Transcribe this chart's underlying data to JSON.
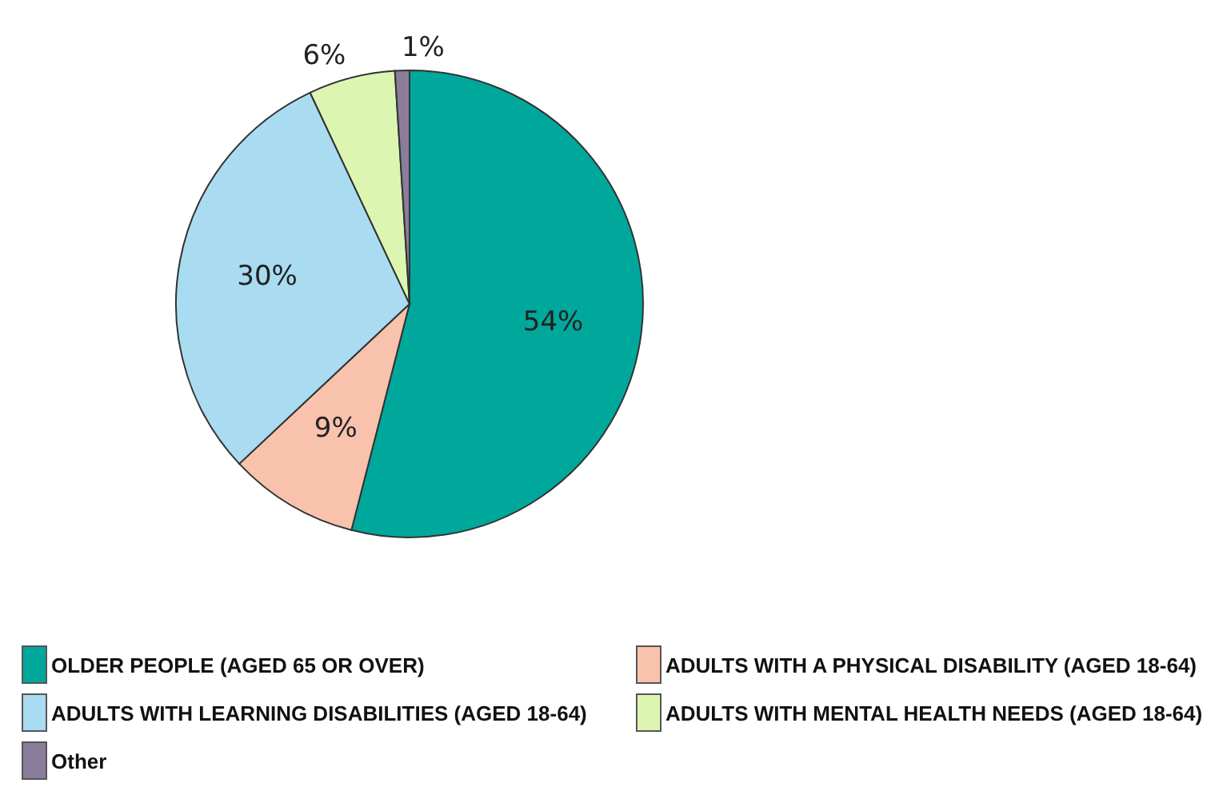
{
  "chart_data": {
    "type": "pie",
    "categories": [
      "OLDER PEOPLE (AGED 65 OR OVER)",
      "ADULTS WITH A PHYSICAL DISABILITY (AGED 18-64)",
      "ADULTS WITH LEARNING DISABILITIES (AGED 18-64)",
      "ADULTS WITH MENTAL HEALTH NEEDS (AGED 18-64)",
      "Other"
    ],
    "values": [
      54,
      9,
      30,
      6,
      1
    ],
    "colors": [
      "#00a89c",
      "#f8c2ac",
      "#a9dcf1",
      "#dcf6b2",
      "#8a7d9c"
    ],
    "value_labels": [
      "54%",
      "9%",
      "30%",
      "6%",
      "1%"
    ],
    "legend": "bottom"
  }
}
